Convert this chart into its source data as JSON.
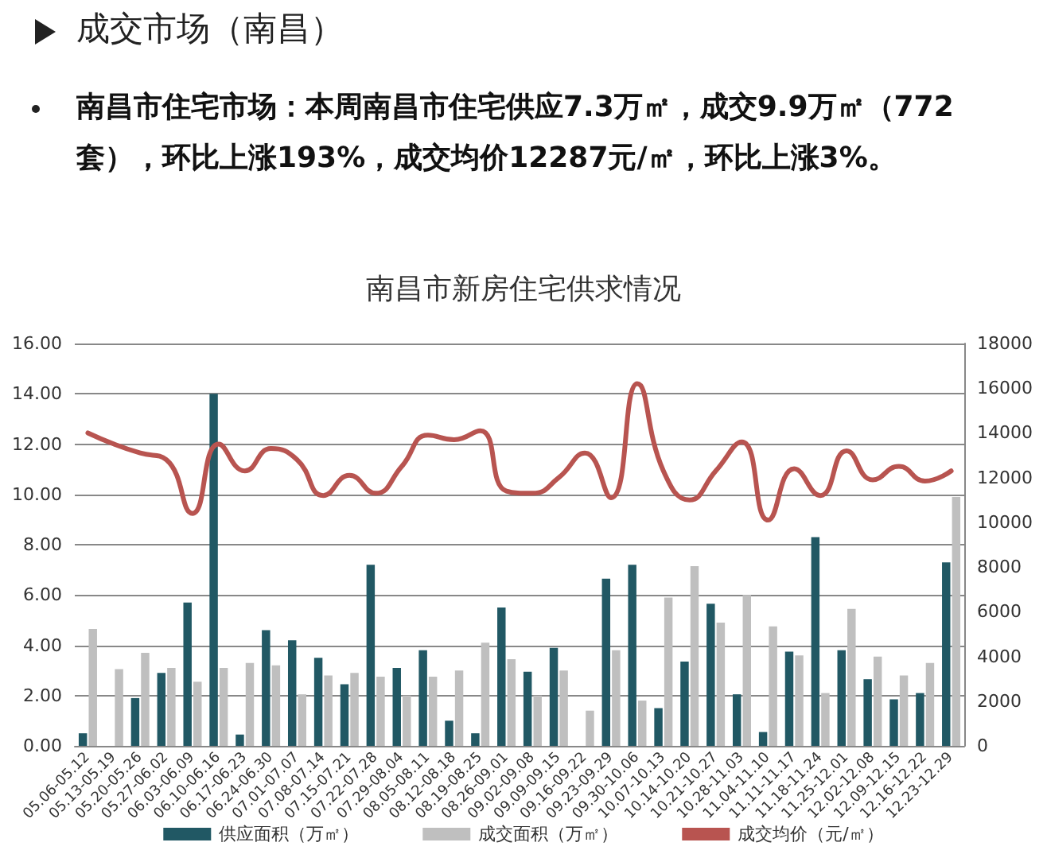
{
  "chart_data": {
    "type": "bar",
    "title": "南昌市新房住宅供求情况",
    "annotations": [
      "成交市场（南昌）",
      "南昌市住宅市场：本周南昌市住宅供应7.3万㎡，成交9.9万㎡（772套），环比上涨193%，成交均价12287元/㎡，环比上涨3%。"
    ],
    "categories": [
      "05.06-05.12",
      "05.13-05.19",
      "05.20-05.26",
      "05.27-06.02",
      "06.03-06.09",
      "06.10-06.16",
      "06.17-06.23",
      "06.24-06.30",
      "07.01-07.07",
      "07.08-07.14",
      "07.15-07.21",
      "07.22-07.28",
      "07.29-08.04",
      "08.05-08.11",
      "08.12-08.18",
      "08.19-08.25",
      "08.26-09.01",
      "09.02-09.08",
      "09.09-09.15",
      "09.16-09.22",
      "09.23-09.29",
      "09.30-10.06",
      "10.07-10.13",
      "10.14-10.20",
      "10.21-10.27",
      "10.28-11.03",
      "11.04-11.10",
      "11.11-11.17",
      "11.18-11.24",
      "11.25-12.01",
      "12.02-12.08",
      "12.09-12.15",
      "12.16-12.22",
      "12.23-12.29"
    ],
    "series": [
      {
        "name": "供应面积（万㎡）",
        "color": "#215864",
        "values": [
          0.5,
          0,
          1.9,
          2.9,
          5.7,
          14.0,
          0.45,
          4.6,
          4.2,
          3.5,
          2.45,
          7.2,
          3.1,
          3.8,
          1.0,
          0.5,
          5.5,
          2.95,
          3.9,
          0,
          6.65,
          7.2,
          1.5,
          3.35,
          5.65,
          2.05,
          0.55,
          3.75,
          8.3,
          3.8,
          2.65,
          1.85,
          2.1,
          7.3
        ]
      },
      {
        "name": "成交面积（万㎡）",
        "color": "#bfbfbf",
        "values": [
          4.65,
          3.05,
          3.7,
          3.1,
          2.55,
          3.1,
          3.3,
          3.2,
          2.05,
          2.8,
          2.9,
          2.75,
          2.0,
          2.75,
          3.0,
          4.1,
          3.45,
          2.0,
          3.0,
          1.4,
          3.8,
          1.8,
          5.9,
          7.15,
          4.9,
          6.0,
          4.75,
          3.6,
          2.1,
          5.45,
          3.55,
          2.8,
          3.3,
          9.9
        ]
      },
      {
        "name": "成交均价（元/㎡）",
        "type": "line",
        "axis": "y2",
        "color": "#b85450",
        "values": [
          14000,
          13500,
          13100,
          12800,
          10400,
          13500,
          12300,
          13300,
          12800,
          11200,
          12100,
          11300,
          12500,
          13900,
          13700,
          14100,
          11400,
          11300,
          12000,
          13100,
          11100,
          16200,
          12300,
          11000,
          12300,
          13600,
          10100,
          12400,
          11200,
          13200,
          11900,
          12500,
          11850,
          12300
        ]
      }
    ],
    "ylim": [
      0,
      16
    ],
    "yticks": [
      {
        "value": 0,
        "label": "0.00"
      },
      {
        "value": 2,
        "label": "2.00"
      },
      {
        "value": 4,
        "label": "4.00"
      },
      {
        "value": 6,
        "label": "6.00"
      },
      {
        "value": 8,
        "label": "8.00"
      },
      {
        "value": 10,
        "label": "10.00"
      },
      {
        "value": 12,
        "label": "12.00"
      },
      {
        "value": 14,
        "label": "14.00"
      },
      {
        "value": 16,
        "label": "16.00"
      }
    ],
    "y2lim": [
      0,
      18000
    ],
    "y2ticks": [
      0,
      2000,
      4000,
      6000,
      8000,
      10000,
      12000,
      14000,
      16000,
      18000
    ],
    "grid": "y",
    "legend": "bottom",
    "marker": "none",
    "line_style": "solid"
  }
}
